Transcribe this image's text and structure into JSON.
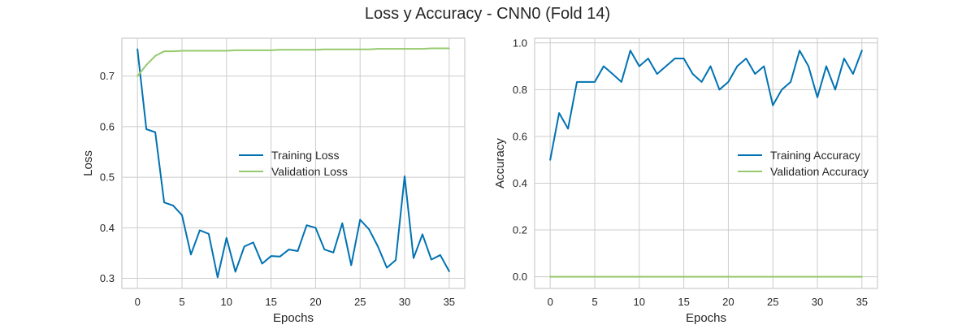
{
  "figure": {
    "title": "Loss y Accuracy - CNN0 (Fold 14)"
  },
  "colors": {
    "train": "#0072B2",
    "validation": "#96C96D",
    "grid": "#CCCCCC",
    "frame": "#CCCCCC",
    "text": "#262626"
  },
  "chart_data": [
    {
      "type": "line",
      "xlabel": "Epochs",
      "ylabel": "Loss",
      "xlim": [
        -1.75,
        36.75
      ],
      "ylim": [
        0.28,
        0.775
      ],
      "xticks": [
        0,
        5,
        10,
        15,
        20,
        25,
        30,
        35
      ],
      "yticks": [
        0.3,
        0.4,
        0.5,
        0.6,
        0.7
      ],
      "ytick_labels": [
        "0.3",
        "0.4",
        "0.5",
        "0.6",
        "0.7"
      ],
      "grid": true,
      "legend": "center-right",
      "x": [
        0,
        1,
        2,
        3,
        4,
        5,
        6,
        7,
        8,
        9,
        10,
        11,
        12,
        13,
        14,
        15,
        16,
        17,
        18,
        19,
        20,
        21,
        22,
        23,
        24,
        25,
        26,
        27,
        28,
        29,
        30,
        31,
        32,
        33,
        34,
        35
      ],
      "series": [
        {
          "name": "Training Loss",
          "color": "#0072B2",
          "values": [
            0.753,
            0.595,
            0.589,
            0.45,
            0.444,
            0.425,
            0.347,
            0.395,
            0.388,
            0.302,
            0.38,
            0.313,
            0.363,
            0.371,
            0.329,
            0.344,
            0.343,
            0.357,
            0.354,
            0.405,
            0.4,
            0.357,
            0.351,
            0.409,
            0.326,
            0.416,
            0.397,
            0.363,
            0.321,
            0.336,
            0.502,
            0.34,
            0.387,
            0.337,
            0.346,
            0.314
          ]
        },
        {
          "name": "Validation Loss",
          "color": "#96C96D",
          "values": [
            0.7,
            0.722,
            0.74,
            0.749,
            0.749,
            0.75,
            0.75,
            0.75,
            0.75,
            0.75,
            0.75,
            0.751,
            0.751,
            0.751,
            0.751,
            0.751,
            0.752,
            0.752,
            0.752,
            0.752,
            0.752,
            0.753,
            0.753,
            0.753,
            0.753,
            0.753,
            0.753,
            0.754,
            0.754,
            0.754,
            0.754,
            0.754,
            0.754,
            0.755,
            0.755,
            0.755
          ]
        }
      ]
    },
    {
      "type": "line",
      "xlabel": "Epochs",
      "ylabel": "Accuracy",
      "xlim": [
        -1.75,
        36.75
      ],
      "ylim": [
        -0.05,
        1.02
      ],
      "xticks": [
        0,
        5,
        10,
        15,
        20,
        25,
        30,
        35
      ],
      "yticks": [
        0.0,
        0.2,
        0.4,
        0.6,
        0.8,
        1.0
      ],
      "ytick_labels": [
        "0.0",
        "0.2",
        "0.4",
        "0.6",
        "0.8",
        "1.0"
      ],
      "grid": true,
      "legend": "center-right",
      "x": [
        0,
        1,
        2,
        3,
        4,
        5,
        6,
        7,
        8,
        9,
        10,
        11,
        12,
        13,
        14,
        15,
        16,
        17,
        18,
        19,
        20,
        21,
        22,
        23,
        24,
        25,
        26,
        27,
        28,
        29,
        30,
        31,
        32,
        33,
        34,
        35
      ],
      "series": [
        {
          "name": "Training Accuracy",
          "color": "#0072B2",
          "values": [
            0.5,
            0.7,
            0.633,
            0.833,
            0.833,
            0.833,
            0.9,
            0.867,
            0.833,
            0.967,
            0.9,
            0.933,
            0.867,
            0.9,
            0.933,
            0.933,
            0.867,
            0.833,
            0.9,
            0.8,
            0.833,
            0.9,
            0.933,
            0.867,
            0.9,
            0.733,
            0.8,
            0.833,
            0.967,
            0.9,
            0.767,
            0.9,
            0.8,
            0.933,
            0.867,
            0.967
          ]
        },
        {
          "name": "Validation Accuracy",
          "color": "#96C96D",
          "values": [
            0,
            0,
            0,
            0,
            0,
            0,
            0,
            0,
            0,
            0,
            0,
            0,
            0,
            0,
            0,
            0,
            0,
            0,
            0,
            0,
            0,
            0,
            0,
            0,
            0,
            0,
            0,
            0,
            0,
            0,
            0,
            0,
            0,
            0,
            0,
            0
          ]
        }
      ]
    }
  ]
}
